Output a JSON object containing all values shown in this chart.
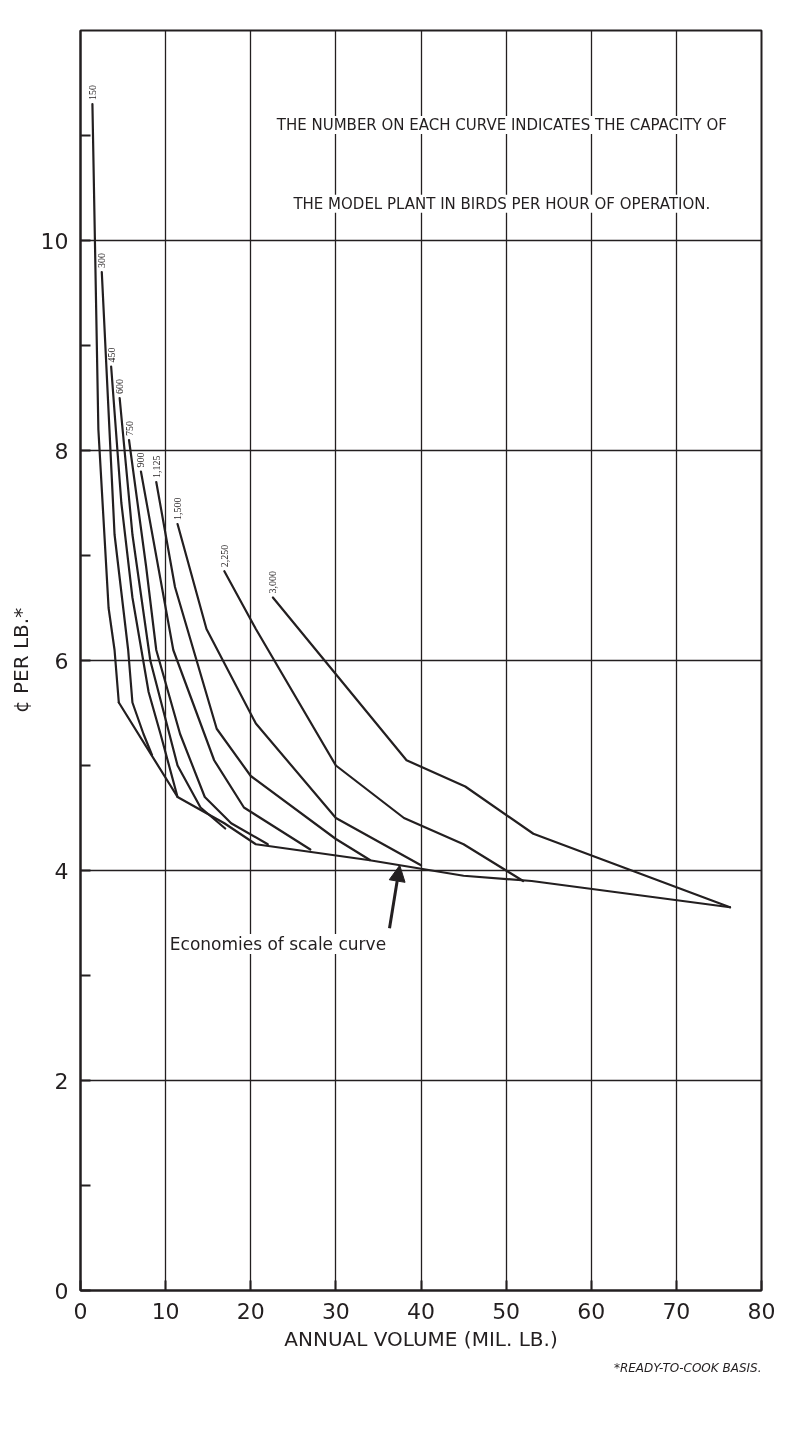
{
  "chart_data": {
    "type": "line",
    "xlabel": "ANNUAL VOLUME (MIL. LB.)",
    "ylabel": "¢ PER LB.*",
    "xlim": [
      0,
      80
    ],
    "xticks": [
      0,
      10,
      20,
      30,
      40,
      50,
      60,
      70,
      80
    ],
    "ylim": [
      0,
      12
    ],
    "yticks": [
      0,
      {
        "value": 1,
        "label": null
      },
      2,
      {
        "value": 3,
        "label": null
      },
      4,
      {
        "value": 5,
        "label": null
      },
      6,
      {
        "value": 7,
        "label": null
      },
      8,
      {
        "value": 9,
        "label": null
      },
      10,
      {
        "value": 11,
        "label": null
      }
    ],
    "grid": true,
    "series": [
      {
        "name": "150",
        "color": "#231f20",
        "x": [
          1.4,
          2.1,
          3.3,
          4.0,
          4.5
        ],
        "values": [
          11.3,
          8.2,
          6.5,
          6.1,
          5.6
        ]
      },
      {
        "name": "300",
        "color": "#231f20",
        "x": [
          2.5,
          4.0,
          5.6,
          6.1,
          7.4,
          8.4
        ],
        "values": [
          9.7,
          7.2,
          6.1,
          5.6,
          5.3,
          5.1
        ]
      },
      {
        "name": "450",
        "color": "#231f20",
        "x": [
          3.6,
          4.8,
          6.1,
          8.0,
          9.4,
          11.4
        ],
        "values": [
          8.8,
          7.5,
          6.6,
          5.7,
          5.3,
          4.7
        ]
      },
      {
        "name": "600",
        "color": "#231f20",
        "x": [
          4.6,
          6.1,
          8.2,
          11.4,
          14.1,
          17.0
        ],
        "values": [
          8.5,
          7.2,
          6.0,
          5.0,
          4.6,
          4.4
        ]
      },
      {
        "name": "750",
        "color": "#231f20",
        "x": [
          5.7,
          7.7,
          8.9,
          11.7,
          14.6,
          17.7,
          22.0
        ],
        "values": [
          8.1,
          6.9,
          6.1,
          5.3,
          4.7,
          4.45,
          4.25
        ]
      },
      {
        "name": "900",
        "color": "#231f20",
        "x": [
          7.1,
          10.9,
          15.7,
          19.2,
          27.0
        ],
        "values": [
          7.8,
          6.1,
          5.05,
          4.6,
          4.2
        ]
      },
      {
        "name": "1,125",
        "color": "#231f20",
        "x": [
          8.9,
          11.1,
          16.0,
          20.0,
          30.0,
          34.0
        ],
        "values": [
          7.7,
          6.7,
          5.35,
          4.9,
          4.3,
          4.1
        ]
      },
      {
        "name": "1,500",
        "color": "#231f20",
        "x": [
          11.4,
          14.8,
          20.6,
          30.0,
          40.0
        ],
        "values": [
          7.3,
          6.3,
          5.4,
          4.5,
          4.05
        ]
      },
      {
        "name": "2,250",
        "color": "#231f20",
        "x": [
          16.9,
          20.6,
          30.0,
          38.0,
          45.0,
          52.0
        ],
        "values": [
          6.85,
          6.3,
          5.0,
          4.5,
          4.25,
          3.9
        ]
      },
      {
        "name": "3,000",
        "color": "#231f20",
        "x": [
          22.6,
          38.3,
          45.2,
          53.2,
          76.3
        ],
        "values": [
          6.6,
          5.05,
          4.8,
          4.35,
          3.65
        ]
      },
      {
        "color": "#231f20",
        "x": [
          4.5,
          11.4,
          16.9,
          20.6,
          33.8,
          45.0,
          53.0,
          76.3
        ],
        "values": [
          5.6,
          4.7,
          4.45,
          4.25,
          4.1,
          3.95,
          3.9,
          3.65
        ]
      }
    ],
    "annotations": [
      "THE NUMBER ON EACH CURVE INDICATES THE CAPACITY OF\nTHE MODEL PLANT IN BIRDS PER HOUR OF OPERATION.",
      "*READY-TO-COOK BASIS.",
      {
        "text": "Economies of scale curve",
        "x": 37.5,
        "y": 4.05
      }
    ]
  }
}
